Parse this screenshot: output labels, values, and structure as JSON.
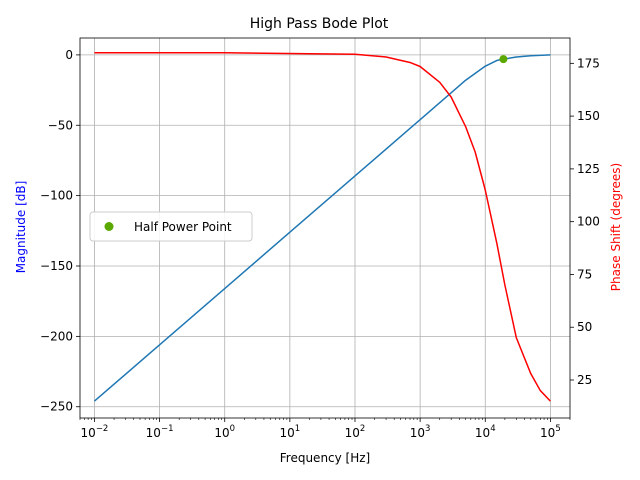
{
  "chart_data": {
    "type": "line",
    "title": "High Pass Bode Plot",
    "xlabel": "Frequency [Hz]",
    "ylabel_left": "Magnitude [dB]",
    "ylabel_right": "Phase Shift (degrees)",
    "x_scale": "log",
    "xlim": [
      0.006,
      200000
    ],
    "ylim_left": [
      -258,
      12
    ],
    "ylim_right": [
      7,
      187
    ],
    "grid": true,
    "legend_position": "center-left",
    "x_ticks": [
      {
        "value": 0.01,
        "base": "10",
        "exp": "−2"
      },
      {
        "value": 0.1,
        "base": "10",
        "exp": "−1"
      },
      {
        "value": 1,
        "base": "10",
        "exp": "0"
      },
      {
        "value": 10,
        "base": "10",
        "exp": "1"
      },
      {
        "value": 100,
        "base": "10",
        "exp": "2"
      },
      {
        "value": 1000,
        "base": "10",
        "exp": "3"
      },
      {
        "value": 10000,
        "base": "10",
        "exp": "4"
      },
      {
        "value": 100000,
        "base": "10",
        "exp": "5"
      }
    ],
    "left_ticks": [
      {
        "value": 0,
        "label": "0"
      },
      {
        "value": -50,
        "label": "−50"
      },
      {
        "value": -100,
        "label": "−100"
      },
      {
        "value": -150,
        "label": "−150"
      },
      {
        "value": -200,
        "label": "−200"
      },
      {
        "value": -250,
        "label": "−250"
      }
    ],
    "right_ticks": [
      {
        "value": 175,
        "label": "175"
      },
      {
        "value": 150,
        "label": "150"
      },
      {
        "value": 125,
        "label": "125"
      },
      {
        "value": 100,
        "label": "100"
      },
      {
        "value": 75,
        "label": "75"
      },
      {
        "value": 50,
        "label": "50"
      },
      {
        "value": 25,
        "label": "25"
      }
    ],
    "series": [
      {
        "axis": "left",
        "color": "#1f77b4",
        "x": [
          0.01,
          0.1,
          1,
          10,
          100,
          1000,
          2000,
          5000,
          10000,
          15000,
          19000,
          30000,
          50000,
          100000
        ],
        "y": [
          -246,
          -206,
          -166,
          -126,
          -86,
          -46,
          -34,
          -18,
          -8,
          -4,
          -3,
          -1.5,
          -0.6,
          0
        ]
      },
      {
        "axis": "right",
        "color": "#ff0000",
        "x": [
          0.01,
          1,
          100,
          300,
          700,
          1000,
          2000,
          3000,
          5000,
          7000,
          10000,
          15000,
          20000,
          30000,
          50000,
          70000,
          100000
        ],
        "y": [
          180,
          180,
          179.3,
          178,
          175.4,
          173.5,
          166,
          159,
          145,
          133,
          115,
          90,
          70,
          45,
          28,
          20,
          15
        ]
      },
      {
        "name": "Half Power Point",
        "axis": "left",
        "type": "point",
        "color": "#5aa800",
        "x": [
          19000
        ],
        "y": [
          -3
        ]
      }
    ],
    "legend": [
      {
        "label": "Half Power Point",
        "color": "#5aa800",
        "marker": "circle"
      }
    ]
  }
}
